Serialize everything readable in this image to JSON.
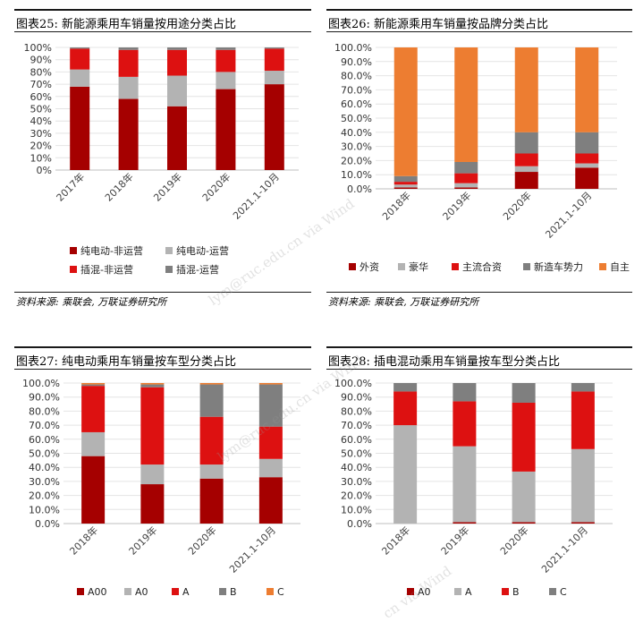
{
  "panels": [
    {
      "title": "图表25:  新能源乘用车销量按用途分类占比",
      "source": "资料来源:  乘联会,  万联证券研究所",
      "chart_data": {
        "type": "bar",
        "stacked": true,
        "categories": [
          "2017年",
          "2018年",
          "2019年",
          "2020年",
          "2021.1-10月"
        ],
        "y_ticks": [
          "0%",
          "10%",
          "20%",
          "30%",
          "40%",
          "50%",
          "60%",
          "70%",
          "80%",
          "90%",
          "100%"
        ],
        "ylim": [
          0,
          100
        ],
        "legend_position": "bottom",
        "series": [
          {
            "name": "纯电动-非运营",
            "color": "#a50000",
            "values": [
              68,
              58,
              52,
              66,
              70
            ]
          },
          {
            "name": "纯电动-运营",
            "color": "#b3b3b3",
            "values": [
              14,
              18,
              25,
              14,
              11
            ]
          },
          {
            "name": "插混-非运营",
            "color": "#dd1111",
            "values": [
              17,
              22,
              21,
              18,
              18
            ]
          },
          {
            "name": "插混-运营",
            "color": "#7f7f7f",
            "values": [
              1,
              2,
              2,
              2,
              1
            ]
          }
        ]
      }
    },
    {
      "title": "图表26:  新能源乘用车销量按品牌分类占比",
      "source": "资料来源:  乘联会,  万联证券研究所",
      "chart_data": {
        "type": "bar",
        "stacked": true,
        "categories": [
          "2018年",
          "2019年",
          "2020年",
          "2021.1-10月"
        ],
        "y_ticks": [
          "0.0%",
          "10.0%",
          "20.0%",
          "30.0%",
          "40.0%",
          "50.0%",
          "60.0%",
          "70.0%",
          "80.0%",
          "90.0%",
          "100.0%"
        ],
        "ylim": [
          0,
          100
        ],
        "legend_position": "bottom",
        "series": [
          {
            "name": "外资",
            "color": "#a50000",
            "values": [
              1,
              1,
              12,
              15
            ]
          },
          {
            "name": "豪华",
            "color": "#b3b3b3",
            "values": [
              2,
              3,
              4,
              3
            ]
          },
          {
            "name": "主流合资",
            "color": "#dd1111",
            "values": [
              2,
              7,
              9,
              7
            ]
          },
          {
            "name": "新造车势力",
            "color": "#7f7f7f",
            "values": [
              4,
              8,
              15,
              15
            ]
          },
          {
            "name": "自主",
            "color": "#ed7d31",
            "values": [
              91,
              81,
              60,
              60
            ]
          }
        ]
      }
    },
    {
      "title": "图表27:  纯电动乘用车销量按车型分类占比",
      "source": "",
      "chart_data": {
        "type": "bar",
        "stacked": true,
        "categories": [
          "2018年",
          "2019年",
          "2020年",
          "2021.1-10月"
        ],
        "y_ticks": [
          "0.0%",
          "10.0%",
          "20.0%",
          "30.0%",
          "40.0%",
          "50.0%",
          "60.0%",
          "70.0%",
          "80.0%",
          "90.0%",
          "100.0%"
        ],
        "ylim": [
          0,
          100
        ],
        "legend_position": "bottom",
        "series": [
          {
            "name": "A00",
            "color": "#a50000",
            "values": [
              48,
              28,
              32,
              33
            ]
          },
          {
            "name": "A0",
            "color": "#b3b3b3",
            "values": [
              17,
              14,
              10,
              13
            ]
          },
          {
            "name": "A",
            "color": "#dd1111",
            "values": [
              33,
              55,
              34,
              23
            ]
          },
          {
            "name": "B",
            "color": "#7f7f7f",
            "values": [
              1,
              2,
              23,
              30
            ]
          },
          {
            "name": "C",
            "color": "#ed7d31",
            "values": [
              1,
              1,
              1,
              1
            ]
          }
        ]
      }
    },
    {
      "title": "图表28:  插电混动乘用车销量按车型分类占比",
      "source": "",
      "chart_data": {
        "type": "bar",
        "stacked": true,
        "categories": [
          "2018年",
          "2019年",
          "2020年",
          "2021.1-10月"
        ],
        "y_ticks": [
          "0.0%",
          "10.0%",
          "20.0%",
          "30.0%",
          "40.0%",
          "50.0%",
          "60.0%",
          "70.0%",
          "80.0%",
          "90.0%",
          "100.0%"
        ],
        "ylim": [
          0,
          100
        ],
        "legend_position": "bottom",
        "series": [
          {
            "name": "A0",
            "color": "#a50000",
            "values": [
              0,
              1,
              1,
              1
            ]
          },
          {
            "name": "A",
            "color": "#b3b3b3",
            "values": [
              70,
              54,
              36,
              52
            ]
          },
          {
            "name": "B",
            "color": "#dd1111",
            "values": [
              24,
              32,
              49,
              41
            ]
          },
          {
            "name": "C",
            "color": "#7f7f7f",
            "values": [
              6,
              13,
              14,
              6
            ]
          }
        ]
      }
    }
  ],
  "watermarks": [
    "lym@ruc.edu.cn via Wind",
    "lym@ruc.edu.cn via Wind",
    "cn via Wind"
  ]
}
